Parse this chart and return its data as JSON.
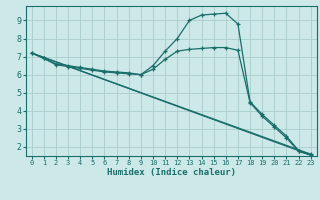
{
  "xlabel": "Humidex (Indice chaleur)",
  "background_color": "#cce8e8",
  "grid_color": "#aacccc",
  "line_color": "#1a6e6a",
  "xlim": [
    -0.5,
    23.5
  ],
  "ylim": [
    1.5,
    9.8
  ],
  "xticks": [
    0,
    1,
    2,
    3,
    4,
    5,
    6,
    7,
    8,
    9,
    10,
    11,
    12,
    13,
    14,
    15,
    16,
    17,
    18,
    19,
    20,
    21,
    22,
    23
  ],
  "yticks": [
    2,
    3,
    4,
    5,
    6,
    7,
    8,
    9
  ],
  "line1_x": [
    0,
    1,
    2,
    3,
    4,
    5,
    6,
    7,
    8,
    9,
    10,
    11,
    12,
    13,
    14,
    15,
    16,
    17,
    18,
    19,
    20,
    21,
    22,
    23
  ],
  "line1_y": [
    7.2,
    6.9,
    6.6,
    6.5,
    6.4,
    6.3,
    6.2,
    6.15,
    6.1,
    6.0,
    6.5,
    7.3,
    8.0,
    9.0,
    9.3,
    9.35,
    9.4,
    8.8,
    4.5,
    3.8,
    3.2,
    2.6,
    1.8,
    1.6
  ],
  "line2_x": [
    0,
    1,
    2,
    3,
    4,
    5,
    6,
    7,
    8,
    9,
    10,
    11,
    12,
    13,
    14,
    15,
    16,
    17,
    18,
    19,
    20,
    21,
    22,
    23
  ],
  "line2_y": [
    7.2,
    6.9,
    6.55,
    6.45,
    6.35,
    6.25,
    6.15,
    6.1,
    6.05,
    6.0,
    6.3,
    6.85,
    7.3,
    7.4,
    7.45,
    7.5,
    7.5,
    7.35,
    4.45,
    3.7,
    3.1,
    2.5,
    1.75,
    1.55
  ],
  "line3_x": [
    0,
    23
  ],
  "line3_y": [
    7.2,
    1.6
  ],
  "line4_x": [
    0,
    23
  ],
  "line4_y": [
    7.2,
    1.55
  ]
}
